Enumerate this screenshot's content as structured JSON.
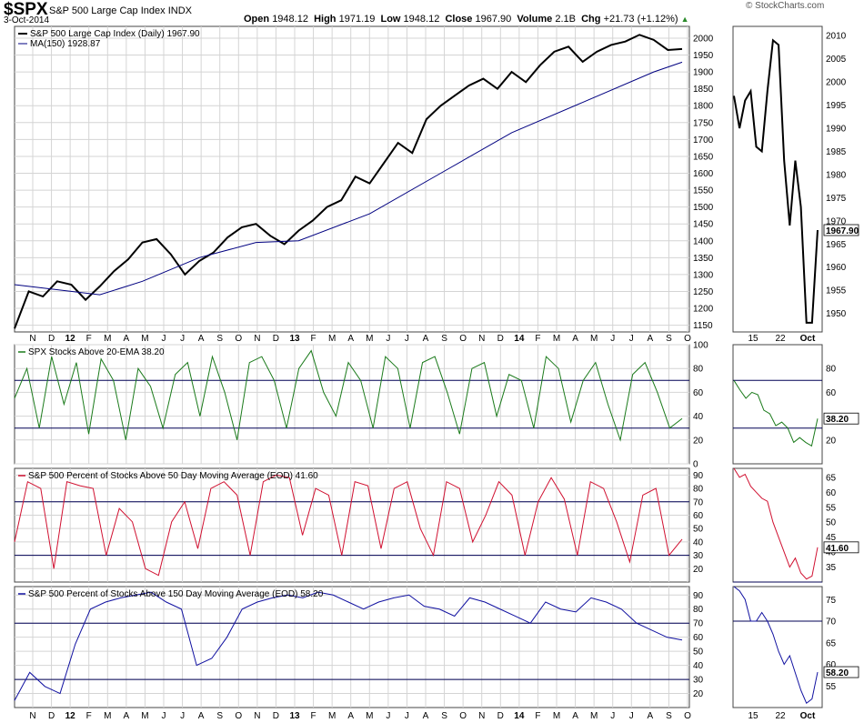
{
  "header": {
    "symbol": "$SPX",
    "name": "S&P 500 Large Cap Index",
    "exchange": "INDX",
    "date": "3-Oct-2014",
    "open_label": "Open",
    "open": "1948.12",
    "high_label": "High",
    "high": "1971.19",
    "low_label": "Low",
    "low": "1948.12",
    "close_label": "Close",
    "close": "1967.90",
    "volume_label": "Volume",
    "volume": "2.1B",
    "chg_label": "Chg",
    "chg": "+21.73 (+1.12%)",
    "brand": "© StockCharts.com"
  },
  "colors": {
    "price": "#000000",
    "ma": "#000080",
    "ema20": "#1a7a1a",
    "ma50": "#d01030",
    "ma150": "#1010a0",
    "grid": "#d4d4d4"
  },
  "x_axis": {
    "labels": [
      "N",
      "D",
      "12",
      "F",
      "M",
      "A",
      "M",
      "J",
      "J",
      "A",
      "S",
      "O",
      "N",
      "D",
      "13",
      "F",
      "M",
      "A",
      "M",
      "J",
      "J",
      "A",
      "S",
      "O",
      "N",
      "D",
      "14",
      "F",
      "M",
      "A",
      "M",
      "J",
      "J",
      "A",
      "S",
      "O"
    ],
    "bold": [
      "12",
      "13",
      "14"
    ],
    "zoom_labels": [
      "15",
      "22",
      "Oct"
    ]
  },
  "chart_data": [
    {
      "type": "line",
      "title": "S&P 500 Large Cap Index (Daily) 1967.90",
      "series": [
        {
          "name": "S&P 500 Large Cap Index (Daily) 1967.90",
          "points": [
            [
              0,
              1140
            ],
            [
              1,
              1250
            ],
            [
              2,
              1235
            ],
            [
              3,
              1280
            ],
            [
              4,
              1270
            ],
            [
              5,
              1225
            ],
            [
              6,
              1265
            ],
            [
              7,
              1310
            ],
            [
              8,
              1345
            ],
            [
              9,
              1395
            ],
            [
              10,
              1405
            ],
            [
              11,
              1360
            ],
            [
              12,
              1300
            ],
            [
              13,
              1340
            ],
            [
              14,
              1365
            ],
            [
              15,
              1410
            ],
            [
              16,
              1440
            ],
            [
              17,
              1450
            ],
            [
              18,
              1415
            ],
            [
              19,
              1390
            ],
            [
              20,
              1430
            ],
            [
              21,
              1460
            ],
            [
              22,
              1500
            ],
            [
              23,
              1520
            ],
            [
              24,
              1590
            ],
            [
              25,
              1570
            ],
            [
              26,
              1630
            ],
            [
              27,
              1690
            ],
            [
              28,
              1660
            ],
            [
              29,
              1760
            ],
            [
              30,
              1800
            ],
            [
              31,
              1830
            ],
            [
              32,
              1860
            ],
            [
              33,
              1880
            ],
            [
              34,
              1850
            ],
            [
              35,
              1900
            ],
            [
              36,
              1870
            ],
            [
              37,
              1920
            ],
            [
              38,
              1960
            ],
            [
              39,
              1975
            ],
            [
              40,
              1930
            ],
            [
              41,
              1960
            ],
            [
              42,
              1980
            ],
            [
              43,
              1990
            ],
            [
              44,
              2010
            ],
            [
              45,
              1995
            ],
            [
              46,
              1965
            ],
            [
              47,
              1968
            ]
          ]
        },
        {
          "name": "MA(150) 1928.87",
          "points": [
            [
              0,
              1270
            ],
            [
              6,
              1240
            ],
            [
              9,
              1280
            ],
            [
              13,
              1350
            ],
            [
              17,
              1395
            ],
            [
              20,
              1400
            ],
            [
              25,
              1480
            ],
            [
              30,
              1600
            ],
            [
              35,
              1720
            ],
            [
              40,
              1810
            ],
            [
              45,
              1900
            ],
            [
              47,
              1929
            ]
          ]
        }
      ],
      "ylim": [
        1130,
        2035
      ],
      "yticks": [
        1150,
        1200,
        1250,
        1300,
        1350,
        1400,
        1450,
        1500,
        1550,
        1600,
        1650,
        1700,
        1750,
        1800,
        1850,
        1900,
        1950,
        2000
      ],
      "zoom": {
        "points": [
          [
            0,
            1997
          ],
          [
            1,
            1990
          ],
          [
            2,
            1996
          ],
          [
            3,
            1998
          ],
          [
            4,
            1986
          ],
          [
            5,
            1985
          ],
          [
            6,
            1998
          ],
          [
            7,
            2009
          ],
          [
            8,
            2008
          ],
          [
            9,
            1983
          ],
          [
            10,
            1969
          ],
          [
            11,
            1983
          ],
          [
            12,
            1973
          ],
          [
            13,
            1948
          ],
          [
            14,
            1948
          ],
          [
            15,
            1968
          ]
        ],
        "ylim": [
          1946,
          2012
        ],
        "yticks": [
          1950,
          1955,
          1960,
          1965,
          1970,
          1975,
          1980,
          1985,
          1990,
          1995,
          2000,
          2005,
          2010
        ]
      },
      "last_value": "1967.90"
    },
    {
      "type": "line",
      "title": "SPX Stocks Above 20-EMA 38.20",
      "series": [
        {
          "name": "SPX Stocks Above 20-EMA 38.20",
          "values": [
            55,
            80,
            30,
            90,
            50,
            85,
            25,
            88,
            70,
            20,
            80,
            65,
            30,
            75,
            85,
            40,
            90,
            60,
            20,
            85,
            90,
            70,
            30,
            80,
            95,
            60,
            40,
            85,
            70,
            30,
            90,
            80,
            30,
            85,
            90,
            60,
            25,
            80,
            85,
            40,
            75,
            70,
            30,
            90,
            80,
            35,
            70,
            85,
            50,
            20,
            75,
            85,
            60,
            30,
            38
          ]
        }
      ],
      "ylim": [
        0,
        100
      ],
      "yticks": [
        0,
        20,
        40,
        60,
        80,
        100
      ],
      "hlines": [
        30,
        70
      ],
      "zoom": {
        "values": [
          70,
          62,
          55,
          60,
          58,
          45,
          42,
          32,
          35,
          30,
          18,
          22,
          18,
          15,
          38
        ],
        "ylim": [
          0,
          100
        ],
        "yticks": [
          0,
          20,
          40,
          60,
          80,
          100
        ]
      },
      "last_value": "38.20"
    },
    {
      "type": "line",
      "title": "S&P 500 Percent of Stocks Above 50 Day Moving Average (EOD) 41.60",
      "series": [
        {
          "name": "S&P 500 Percent of Stocks Above 50 Day Moving Average (EOD) 41.60",
          "values": [
            40,
            85,
            80,
            20,
            85,
            82,
            80,
            30,
            65,
            55,
            20,
            15,
            55,
            70,
            35,
            80,
            85,
            75,
            30,
            85,
            90,
            88,
            45,
            80,
            75,
            30,
            85,
            82,
            35,
            80,
            85,
            50,
            30,
            85,
            80,
            40,
            60,
            85,
            75,
            30,
            70,
            88,
            72,
            30,
            85,
            80,
            55,
            25,
            75,
            80,
            30,
            42
          ]
        }
      ],
      "ylim": [
        10,
        95
      ],
      "yticks": [
        20,
        30,
        40,
        50,
        60,
        70,
        80,
        90
      ],
      "hlines": [
        30,
        70
      ],
      "zoom": {
        "values": [
          68,
          65,
          66,
          62,
          60,
          58,
          57,
          50,
          45,
          40,
          35,
          38,
          33,
          31,
          32,
          41.6
        ],
        "ylim": [
          30,
          68
        ],
        "yticks": [
          35,
          40,
          45,
          50,
          55,
          60,
          65
        ]
      },
      "last_value": "41.60"
    },
    {
      "type": "line",
      "title": "S&P 500 Percent of Stocks Above 150 Day Moving Average (EOD) 58.20",
      "series": [
        {
          "name": "S&P 500 Percent of Stocks Above 150 Day Moving Average (EOD) 58.20",
          "values": [
            15,
            35,
            25,
            20,
            55,
            80,
            85,
            88,
            90,
            92,
            85,
            80,
            40,
            45,
            60,
            80,
            85,
            88,
            90,
            88,
            92,
            90,
            85,
            80,
            85,
            88,
            90,
            82,
            80,
            75,
            88,
            85,
            80,
            75,
            70,
            85,
            80,
            78,
            88,
            85,
            80,
            70,
            65,
            60,
            58
          ]
        }
      ],
      "ylim": [
        10,
        96
      ],
      "yticks": [
        20,
        30,
        40,
        50,
        60,
        70,
        80,
        90
      ],
      "hlines": [
        30,
        70
      ],
      "zoom": {
        "values": [
          78,
          77,
          75,
          70,
          70,
          72,
          70,
          67,
          63,
          60,
          62,
          58,
          54,
          51,
          52,
          58.2
        ],
        "ylim": [
          50,
          78
        ],
        "yticks": [
          55,
          60,
          65,
          70,
          75
        ]
      },
      "last_value": "58.20"
    }
  ]
}
